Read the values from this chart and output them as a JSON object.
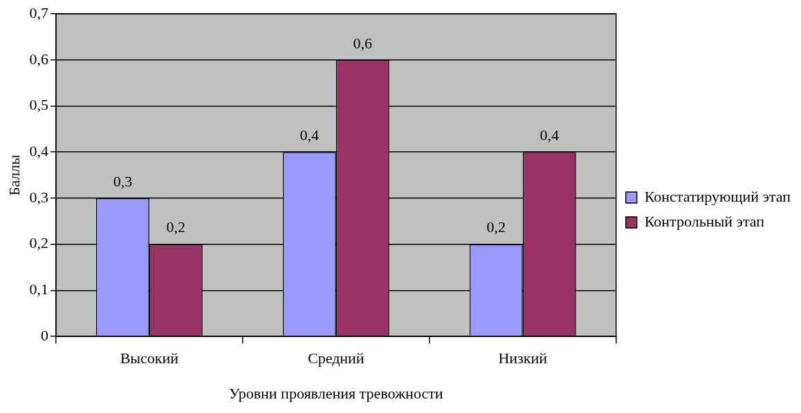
{
  "chart_data": {
    "type": "bar",
    "xlabel": "Уровни проявления тревожности",
    "ylabel": "Баллы",
    "categories": [
      "Высокий",
      "Средний",
      "Низкий"
    ],
    "series": [
      {
        "name": "Констатирующий этап",
        "color": "#9999ff",
        "values": [
          0.3,
          0.4,
          0.2
        ],
        "value_labels": [
          "0,3",
          "0,4",
          "0,2"
        ]
      },
      {
        "name": "Контрольный этап",
        "color": "#993366",
        "values": [
          0.2,
          0.6,
          0.4
        ],
        "value_labels": [
          "0,2",
          "0,6",
          "0,4"
        ]
      }
    ],
    "ylim": [
      0,
      0.7
    ],
    "yticks": [
      {
        "value": 0,
        "label": "0"
      },
      {
        "value": 0.1,
        "label": "0,1"
      },
      {
        "value": 0.2,
        "label": "0,2"
      },
      {
        "value": 0.3,
        "label": "0,3"
      },
      {
        "value": 0.4,
        "label": "0,4"
      },
      {
        "value": 0.5,
        "label": "0,5"
      },
      {
        "value": 0.6,
        "label": "0,6"
      },
      {
        "value": 0.7,
        "label": "0,7"
      }
    ],
    "grid": "y",
    "legend": "right"
  }
}
